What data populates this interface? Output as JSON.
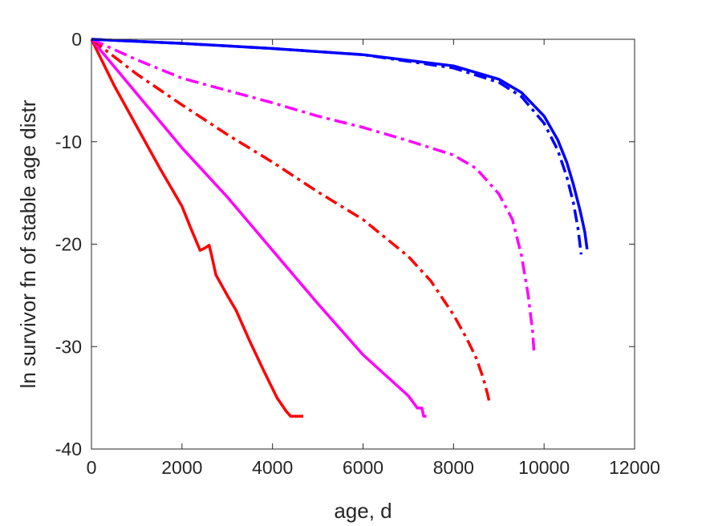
{
  "chart_data": {
    "type": "line",
    "title": "",
    "xlabel": "age, d",
    "ylabel": "ln survivor fn of stable age distr",
    "xlim": [
      0,
      12000
    ],
    "ylim": [
      -40,
      0
    ],
    "xticks": [
      0,
      2000,
      4000,
      6000,
      8000,
      10000,
      12000
    ],
    "yticks": [
      0,
      -10,
      -20,
      -30,
      -40
    ],
    "xtick_labels": [
      "0",
      "2000",
      "4000",
      "6000",
      "8000",
      "10000",
      "12000"
    ],
    "ytick_labels": [
      "0",
      "-10",
      "-20",
      "-30",
      "-40"
    ],
    "grid": false,
    "legend": "none",
    "series": [
      {
        "color": "#ff0000",
        "style": "solid",
        "x": [
          0,
          500,
          1000,
          1500,
          2000,
          2200,
          2400,
          2500,
          2600,
          2650,
          2750,
          3000,
          3200,
          3500,
          3800,
          4100,
          4300,
          4400,
          4500,
          4600,
          4680
        ],
        "y": [
          0,
          -4.5,
          -8.5,
          -12.5,
          -16.3,
          -18.5,
          -20.6,
          -20.4,
          -20.1,
          -21.0,
          -23.0,
          -25.0,
          -26.5,
          -29.5,
          -32.3,
          -35.0,
          -36.3,
          -36.8,
          -36.8,
          -36.8,
          -36.8
        ]
      },
      {
        "color": "#ff00ff",
        "style": "solid",
        "x": [
          0,
          1000,
          2000,
          3000,
          4000,
          5000,
          6000,
          7000,
          7200,
          7250,
          7300,
          7340,
          7400
        ],
        "y": [
          0,
          -5.3,
          -10.6,
          -15.4,
          -20.6,
          -25.8,
          -30.8,
          -34.8,
          -36.0,
          -36.0,
          -36.0,
          -36.8,
          -36.8
        ]
      },
      {
        "color": "#ff0000",
        "style": "dashdot",
        "x": [
          0,
          1000,
          2000,
          3000,
          4000,
          5000,
          6000,
          7000,
          7500,
          8000,
          8300,
          8500,
          8650,
          8750,
          8800
        ],
        "y": [
          0,
          -3.4,
          -6.4,
          -9.3,
          -12.0,
          -14.9,
          -17.6,
          -21.2,
          -23.6,
          -26.9,
          -29.3,
          -31.1,
          -33.0,
          -34.6,
          -35.6
        ]
      },
      {
        "color": "#ff00ff",
        "style": "dashdot",
        "x": [
          0,
          1000,
          2000,
          3000,
          4000,
          5000,
          6000,
          7000,
          8000,
          8500,
          9000,
          9300,
          9500,
          9650,
          9750,
          9780
        ],
        "y": [
          0,
          -2.0,
          -3.8,
          -5.0,
          -6.2,
          -7.5,
          -8.6,
          -9.9,
          -11.3,
          -12.6,
          -15.1,
          -17.6,
          -21.1,
          -25.0,
          -28.7,
          -30.8
        ]
      },
      {
        "color": "#0000ff",
        "style": "dashdot",
        "x": [
          0,
          2000,
          4000,
          6000,
          8000,
          9000,
          9500,
          10000,
          10300,
          10500,
          10650,
          10750,
          10820
        ],
        "y": [
          0,
          -0.4,
          -0.9,
          -1.5,
          -2.8,
          -4.2,
          -5.6,
          -8.2,
          -10.8,
          -13.4,
          -16.0,
          -18.5,
          -21.0
        ]
      },
      {
        "color": "#0000ff",
        "style": "solid",
        "x": [
          0,
          2000,
          4000,
          6000,
          8000,
          9000,
          9500,
          10000,
          10300,
          10500,
          10650,
          10800,
          10900,
          10950
        ],
        "y": [
          0,
          -0.4,
          -0.9,
          -1.5,
          -2.6,
          -3.9,
          -5.2,
          -7.5,
          -9.8,
          -12.0,
          -14.2,
          -16.8,
          -18.8,
          -20.5
        ]
      }
    ]
  }
}
